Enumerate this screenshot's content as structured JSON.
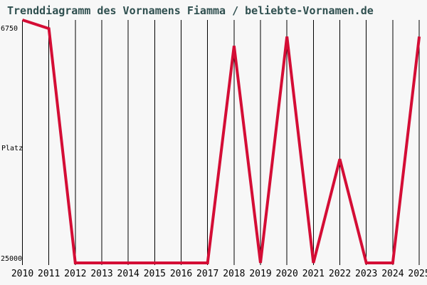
{
  "title": "Trenddiagramm des Vornamens Fiamma / beliebte-Vornamen.de",
  "colors": {
    "background": "#f7f7f7",
    "title_text": "#2f4f4f",
    "line": "#d40d35",
    "grid": "#000000",
    "tick_text": "#000000"
  },
  "y_axis": {
    "label": "Platz",
    "top_tick": "6750",
    "bottom_tick": "25000"
  },
  "chart_data": {
    "type": "line",
    "title": "Trenddiagramm des Vornamens Fiamma / beliebte-Vornamen.de",
    "x": [
      2010,
      2011,
      2012,
      2013,
      2014,
      2015,
      2016,
      2017,
      2018,
      2019,
      2020,
      2021,
      2022,
      2023,
      2024,
      2025
    ],
    "series": [
      {
        "name": "Fiamma",
        "values": [
          6750,
          7400,
          25000,
          25000,
          25000,
          25000,
          25000,
          25000,
          8700,
          25000,
          8000,
          25000,
          17200,
          25000,
          25000,
          8000
        ]
      }
    ],
    "xlabel": "",
    "ylabel": "Platz",
    "ylim": [
      6750,
      25000
    ],
    "y_inverted": true,
    "yticks": [
      "6750",
      "25000"
    ],
    "grid": "vertical-only",
    "legend": "none"
  }
}
